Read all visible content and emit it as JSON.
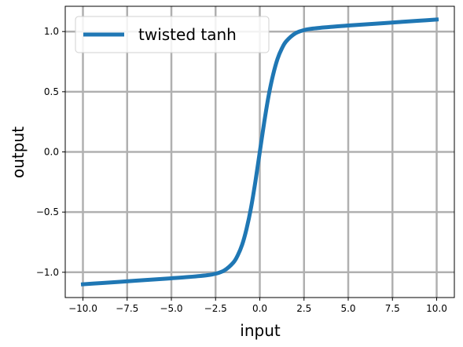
{
  "chart_data": {
    "type": "line",
    "xlabel": "input",
    "ylabel": "output",
    "xlim": [
      -11.0,
      11.0
    ],
    "ylim": [
      -1.21,
      1.21
    ],
    "grid": true,
    "legend_placement": "top-left",
    "xticks": [
      -10.0,
      -7.5,
      -5.0,
      -2.5,
      0.0,
      2.5,
      5.0,
      7.5,
      10.0
    ],
    "xtick_labels": [
      "−10.0",
      "−7.5",
      "−5.0",
      "−2.5",
      "0.0",
      "2.5",
      "5.0",
      "7.5",
      "10.0"
    ],
    "yticks": [
      -1.0,
      -0.5,
      0.0,
      0.5,
      1.0
    ],
    "ytick_labels": [
      "−1.0",
      "−0.5",
      "0.0",
      "0.5",
      "1.0"
    ],
    "series": [
      {
        "name": "twisted tanh",
        "color": "#1f77b4",
        "x": [
          -10,
          -9,
          -8,
          -7,
          -6,
          -5,
          -4,
          -3,
          -2.5,
          -2,
          -1.5,
          -1.25,
          -1,
          -0.75,
          -0.5,
          -0.25,
          0,
          0.25,
          0.5,
          0.75,
          1,
          1.25,
          1.5,
          2,
          2.5,
          3,
          4,
          5,
          6,
          7,
          8,
          9,
          10
        ],
        "y": [
          -1.1,
          -1.09,
          -1.08,
          -1.07,
          -1.06,
          -1.05,
          -1.039,
          -1.025,
          -1.012,
          -0.984,
          -0.92,
          -0.86,
          -0.772,
          -0.64,
          -0.467,
          -0.247,
          0,
          0.247,
          0.467,
          0.64,
          0.772,
          0.86,
          0.92,
          0.984,
          1.012,
          1.025,
          1.039,
          1.05,
          1.06,
          1.07,
          1.08,
          1.09,
          1.1
        ]
      }
    ]
  }
}
